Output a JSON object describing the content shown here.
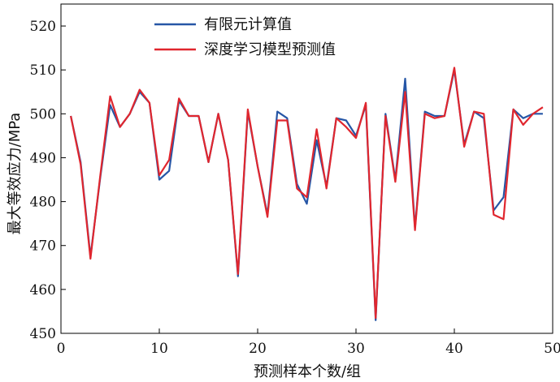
{
  "chart_data": {
    "type": "line",
    "title": "",
    "xlabel": "预测样本个数/组",
    "ylabel": "最大等效应力/MPa",
    "xlim": [
      0,
      50
    ],
    "ylim": [
      450,
      525
    ],
    "xticks": [
      0,
      10,
      20,
      30,
      40,
      50
    ],
    "yticks": [
      450,
      460,
      470,
      480,
      490,
      500,
      510,
      520
    ],
    "grid": false,
    "legend_position": "top-center",
    "x": [
      1,
      2,
      3,
      4,
      5,
      6,
      7,
      8,
      9,
      10,
      11,
      12,
      13,
      14,
      15,
      16,
      17,
      18,
      19,
      20,
      21,
      22,
      23,
      24,
      25,
      26,
      27,
      28,
      29,
      30,
      31,
      32,
      33,
      34,
      35,
      36,
      37,
      38,
      39,
      40,
      41,
      42,
      43,
      44,
      45,
      46,
      47,
      48,
      49
    ],
    "series": [
      {
        "name": "有限元计算值",
        "color": "#2656a6",
        "values": [
          499.5,
          489.0,
          467.5,
          485.5,
          502.0,
          497.0,
          500.0,
          505.0,
          502.5,
          485.0,
          487.0,
          503.0,
          499.5,
          499.5,
          489.0,
          500.0,
          489.5,
          463.0,
          500.5,
          488.0,
          477.0,
          500.5,
          499.0,
          484.0,
          479.5,
          494.0,
          483.5,
          499.0,
          498.5,
          495.0,
          502.0,
          453.0,
          500.0,
          485.0,
          508.0,
          474.0,
          500.5,
          499.5,
          499.5,
          510.0,
          493.0,
          500.5,
          499.0,
          478.0,
          481.0,
          501.0,
          499.0,
          500.0,
          500.0
        ]
      },
      {
        "name": "深度学习模型预测值",
        "color": "#e0262e",
        "values": [
          499.5,
          488.5,
          467.0,
          486.0,
          504.0,
          497.0,
          500.0,
          505.5,
          502.5,
          486.0,
          489.5,
          503.5,
          499.5,
          499.5,
          489.0,
          500.0,
          489.5,
          463.5,
          501.0,
          488.0,
          476.5,
          498.5,
          498.5,
          483.0,
          481.0,
          496.5,
          483.0,
          499.0,
          497.0,
          494.5,
          502.5,
          453.5,
          499.5,
          484.5,
          505.0,
          473.5,
          500.0,
          499.0,
          499.5,
          510.5,
          492.5,
          500.5,
          500.0,
          477.0,
          476.0,
          501.0,
          497.5,
          500.0,
          501.5
        ]
      }
    ]
  }
}
